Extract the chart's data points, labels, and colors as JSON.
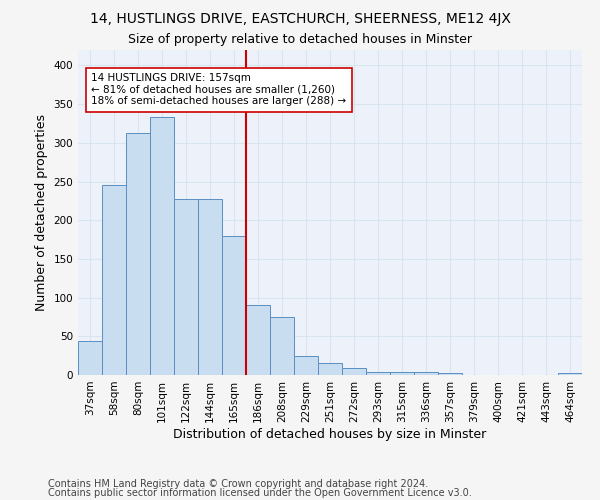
{
  "title1": "14, HUSTLINGS DRIVE, EASTCHURCH, SHEERNESS, ME12 4JX",
  "title2": "Size of property relative to detached houses in Minster",
  "xlabel": "Distribution of detached houses by size in Minster",
  "ylabel": "Number of detached properties",
  "footer1": "Contains HM Land Registry data © Crown copyright and database right 2024.",
  "footer2": "Contains public sector information licensed under the Open Government Licence v3.0.",
  "categories": [
    "37sqm",
    "58sqm",
    "80sqm",
    "101sqm",
    "122sqm",
    "144sqm",
    "165sqm",
    "186sqm",
    "208sqm",
    "229sqm",
    "251sqm",
    "272sqm",
    "293sqm",
    "315sqm",
    "336sqm",
    "357sqm",
    "379sqm",
    "400sqm",
    "421sqm",
    "443sqm",
    "464sqm"
  ],
  "values": [
    44,
    245,
    313,
    334,
    228,
    228,
    180,
    90,
    75,
    25,
    15,
    9,
    4,
    4,
    4,
    2,
    0,
    0,
    0,
    0,
    3
  ],
  "bar_color": "#c9ddf0",
  "bar_edge_color": "#5a8fc2",
  "vline_x": 6.5,
  "vline_color": "#cc0000",
  "annotation_text": "14 HUSTLINGS DRIVE: 157sqm\n← 81% of detached houses are smaller (1,260)\n18% of semi-detached houses are larger (288) →",
  "annotation_box_color": "#ffffff",
  "annotation_box_edge": "#cc0000",
  "ylim": [
    0,
    420
  ],
  "yticks": [
    0,
    50,
    100,
    150,
    200,
    250,
    300,
    350,
    400
  ],
  "bg_color": "#edf2fa",
  "grid_color": "#d8e4f0",
  "title1_fontsize": 10,
  "title2_fontsize": 9,
  "xlabel_fontsize": 9,
  "ylabel_fontsize": 9,
  "tick_fontsize": 7.5,
  "footer_fontsize": 7,
  "fig_bg": "#f5f5f5"
}
